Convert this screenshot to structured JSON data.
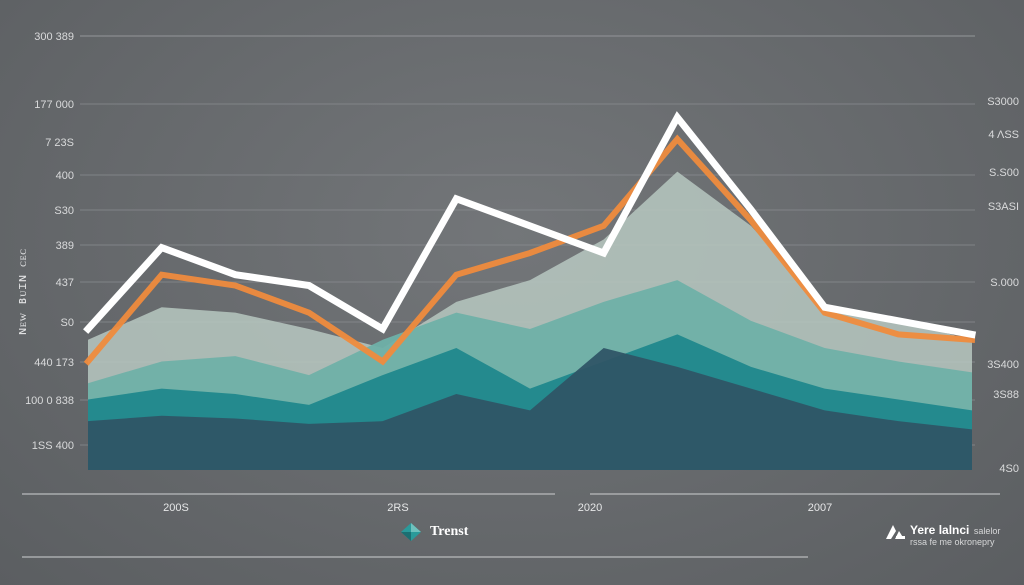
{
  "chart_data": {
    "type": "area",
    "title": "",
    "xlabel": "",
    "ylabel": "ɴᴇᴡ ʙᴜɪɴ ᴄᴇᴄ",
    "y_axis_left_ticks": [
      "300 389",
      "177 000",
      "7 23S",
      "400",
      "S30",
      "389",
      "437",
      "S0",
      "440 173",
      "100 0 838",
      "1SS 400"
    ],
    "y_axis_right_ticks": [
      "S3000",
      "4 ΛSS",
      "S.S00",
      "S3ASI",
      "S.000",
      "3S400",
      "3S88",
      "4S0"
    ],
    "x_ticks": [
      "200S",
      "2RS",
      "2020",
      "2007"
    ],
    "x": [
      0,
      1,
      2,
      3,
      4,
      5,
      6,
      7,
      8,
      9,
      10,
      11,
      12
    ],
    "series": [
      {
        "name": "Trenst",
        "color": "#ffffff",
        "values": [
          52,
          82,
          72,
          68,
          52,
          100,
          90,
          80,
          130,
          96,
          60,
          55,
          50
        ]
      },
      {
        "color": "#ef8b3d",
        "values": [
          40,
          72,
          68,
          58,
          40,
          72,
          80,
          90,
          122,
          92,
          58,
          50,
          48
        ]
      }
    ],
    "areas": [
      {
        "color": "#b7c8c1",
        "values": [
          48,
          60,
          58,
          52,
          45,
          62,
          70,
          85,
          110,
          90,
          60,
          55,
          48
        ]
      },
      {
        "color": "#6fb0a8",
        "values": [
          32,
          40,
          42,
          35,
          48,
          58,
          52,
          62,
          70,
          55,
          45,
          40,
          36
        ]
      },
      {
        "color": "#20888c",
        "values": [
          26,
          30,
          28,
          24,
          35,
          45,
          30,
          40,
          50,
          38,
          30,
          26,
          22
        ]
      },
      {
        "color": "#2f5566",
        "values": [
          18,
          20,
          19,
          17,
          18,
          28,
          22,
          45,
          38,
          30,
          22,
          18,
          15
        ]
      }
    ],
    "ylim": [
      0,
      160
    ],
    "grid": true,
    "legend_position": "bottom-center"
  },
  "legend": {
    "label": "Trenst",
    "marker_colors": [
      "#2a9a9a",
      "#6fc1bd"
    ]
  },
  "brand": {
    "logo_text": "LA",
    "title": "Yere lalnci",
    "title_suffix": "salelor",
    "subtitle": "rssa fe me okronepry"
  },
  "colors": {
    "background": "#676a6d",
    "grid": "#85888b",
    "white_line": "#ffffff",
    "orange_line": "#ef8b3d",
    "teal_dark": "#20888c",
    "navy": "#2f5566",
    "sage": "#b7c8c1"
  }
}
